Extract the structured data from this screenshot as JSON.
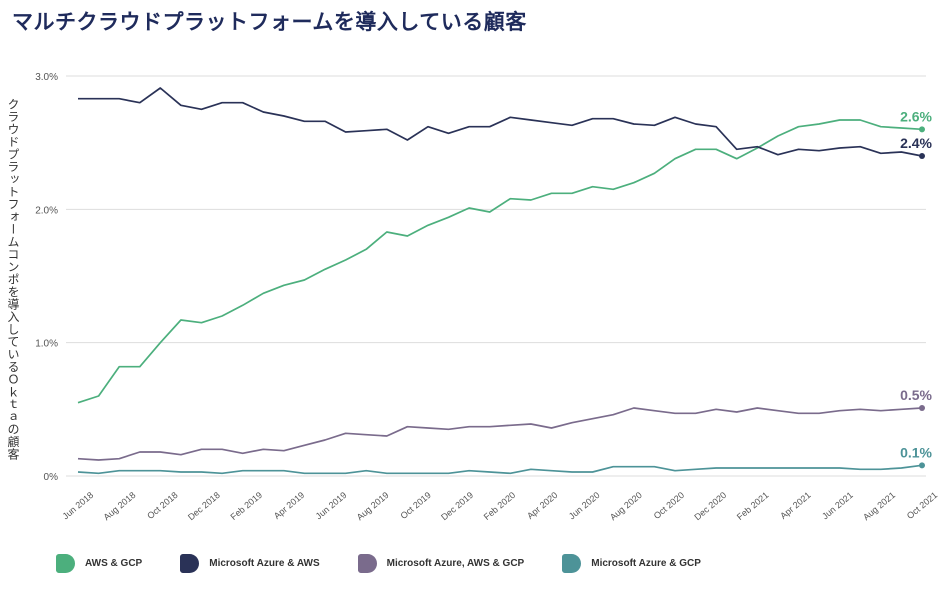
{
  "title": "マルチクラウドプラットフォームを導入している顧客",
  "colors": {
    "aws_gcp": "#4caf7d",
    "azure_aws": "#2a3257",
    "azure_aws_gcp": "#7a6b8c",
    "azure_gcp": "#4d9398",
    "grid": "#dddddd",
    "axis_text": "#555555"
  },
  "chart_data": {
    "type": "line",
    "title": "マルチクラウドプラットフォームを導入している顧客",
    "ylabel": "クラウドプラットフォームコンポを導入しているＯｋｔａの顧客",
    "xlabel": "",
    "ylim": [
      0,
      3.0
    ],
    "yticks": [
      "0%",
      "1.0%",
      "2.0%",
      "3.0%"
    ],
    "ytick_values": [
      0,
      1.0,
      2.0,
      3.0
    ],
    "grid": true,
    "legend": "bottom",
    "x_tick_labels": [
      "Jun 2018",
      "Aug 2018",
      "Oct 2018",
      "Dec 2018",
      "Feb 2019",
      "Apr 2019",
      "Jun 2019",
      "Aug 2019",
      "Oct 2019",
      "Dec 2019",
      "Feb 2020",
      "Apr 2020",
      "Jun 2020",
      "Aug 2020",
      "Oct 2020",
      "Dec 2020",
      "Feb 2021",
      "Apr 2021",
      "Jun 2021",
      "Aug 2021",
      "Oct 2021"
    ],
    "series": [
      {
        "name": "AWS & GCP",
        "color_key": "aws_gcp",
        "end_label": "2.6%",
        "values": [
          0.55,
          0.6,
          0.82,
          0.82,
          1.0,
          1.17,
          1.15,
          1.2,
          1.28,
          1.37,
          1.43,
          1.47,
          1.55,
          1.62,
          1.7,
          1.83,
          1.8,
          1.88,
          1.94,
          2.01,
          1.98,
          2.08,
          2.07,
          2.12,
          2.12,
          2.17,
          2.15,
          2.2,
          2.27,
          2.38,
          2.45,
          2.45,
          2.38,
          2.46,
          2.55,
          2.62,
          2.64,
          2.67,
          2.67,
          2.62,
          2.61,
          2.6
        ]
      },
      {
        "name": "Microsoft Azure & AWS",
        "color_key": "azure_aws",
        "end_label": "2.4%",
        "values": [
          2.83,
          2.83,
          2.83,
          2.8,
          2.91,
          2.78,
          2.75,
          2.8,
          2.8,
          2.73,
          2.7,
          2.66,
          2.66,
          2.58,
          2.59,
          2.6,
          2.52,
          2.62,
          2.57,
          2.62,
          2.62,
          2.69,
          2.67,
          2.65,
          2.63,
          2.68,
          2.68,
          2.64,
          2.63,
          2.69,
          2.64,
          2.62,
          2.45,
          2.47,
          2.41,
          2.45,
          2.44,
          2.46,
          2.47,
          2.42,
          2.43,
          2.4
        ]
      },
      {
        "name": "Microsoft Azure, AWS & GCP",
        "color_key": "azure_aws_gcp",
        "end_label": "0.5%",
        "values": [
          0.13,
          0.12,
          0.13,
          0.18,
          0.18,
          0.16,
          0.2,
          0.2,
          0.17,
          0.2,
          0.19,
          0.23,
          0.27,
          0.32,
          0.31,
          0.3,
          0.37,
          0.36,
          0.35,
          0.37,
          0.37,
          0.38,
          0.39,
          0.36,
          0.4,
          0.43,
          0.46,
          0.51,
          0.49,
          0.47,
          0.47,
          0.5,
          0.48,
          0.51,
          0.49,
          0.47,
          0.47,
          0.49,
          0.5,
          0.49,
          0.5,
          0.51
        ]
      },
      {
        "name": "Microsoft Azure & GCP",
        "color_key": "azure_gcp",
        "end_label": "0.1%",
        "values": [
          0.03,
          0.02,
          0.04,
          0.04,
          0.04,
          0.03,
          0.03,
          0.02,
          0.04,
          0.04,
          0.04,
          0.02,
          0.02,
          0.02,
          0.04,
          0.02,
          0.02,
          0.02,
          0.02,
          0.04,
          0.03,
          0.02,
          0.05,
          0.04,
          0.03,
          0.03,
          0.07,
          0.07,
          0.07,
          0.04,
          0.05,
          0.06,
          0.06,
          0.06,
          0.06,
          0.06,
          0.06,
          0.06,
          0.05,
          0.05,
          0.06,
          0.08
        ]
      }
    ]
  }
}
